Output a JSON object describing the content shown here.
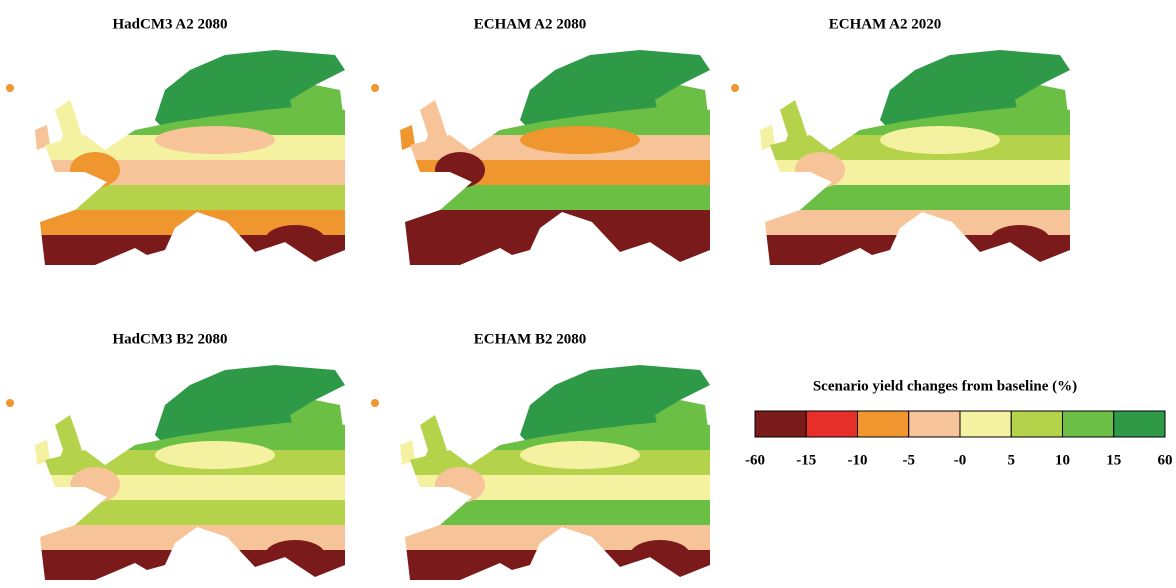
{
  "panels": [
    {
      "title": "HadCM3 A2 2080"
    },
    {
      "title": "ECHAM A2 2080"
    },
    {
      "title": "ECHAM A2 2020"
    },
    {
      "title": "HadCM3 B2 2080"
    },
    {
      "title": "ECHAM B2 2080"
    }
  ],
  "legend": {
    "title": "Scenario yield changes from baseline (%)",
    "labels": [
      "-60",
      "-15",
      "-10",
      "-5",
      "-0",
      "5",
      "10",
      "15",
      "60"
    ],
    "colors": [
      "#7b1a1a",
      "#e8302a",
      "#f0962e",
      "#f7c49a",
      "#f4f2a0",
      "#b5d34a",
      "#6cbf45",
      "#2e9a48"
    ]
  }
}
